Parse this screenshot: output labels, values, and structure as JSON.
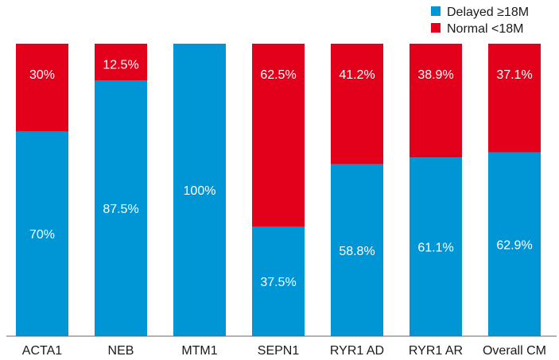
{
  "chart_data": {
    "type": "bar",
    "stacked": true,
    "percent_scale": true,
    "categories": [
      "ACTA1",
      "NEB",
      "MTM1",
      "SEPN1",
      "RYR1 AD",
      "RYR1 AR",
      "Overall CM"
    ],
    "series": [
      {
        "name": "Delayed ≥18M",
        "color": "#0096d6",
        "values": [
          70,
          87.5,
          100,
          37.5,
          58.8,
          61.1,
          62.9
        ],
        "labels": [
          "70%",
          "87.5%",
          "100%",
          "37.5%",
          "58.8%",
          "61.1%",
          "62.9%"
        ]
      },
      {
        "name": "Normal <18M",
        "color": "#e3001b",
        "values": [
          30,
          12.5,
          0,
          62.5,
          41.2,
          38.9,
          37.1
        ],
        "labels": [
          "30%",
          "12.5%",
          "",
          "62.5%",
          "41.2%",
          "38.9%",
          "37.1%"
        ]
      }
    ],
    "ylim": [
      0,
      100
    ],
    "grid": false,
    "legend_position": "top-right",
    "title": "",
    "xlabel": "",
    "ylabel": ""
  }
}
